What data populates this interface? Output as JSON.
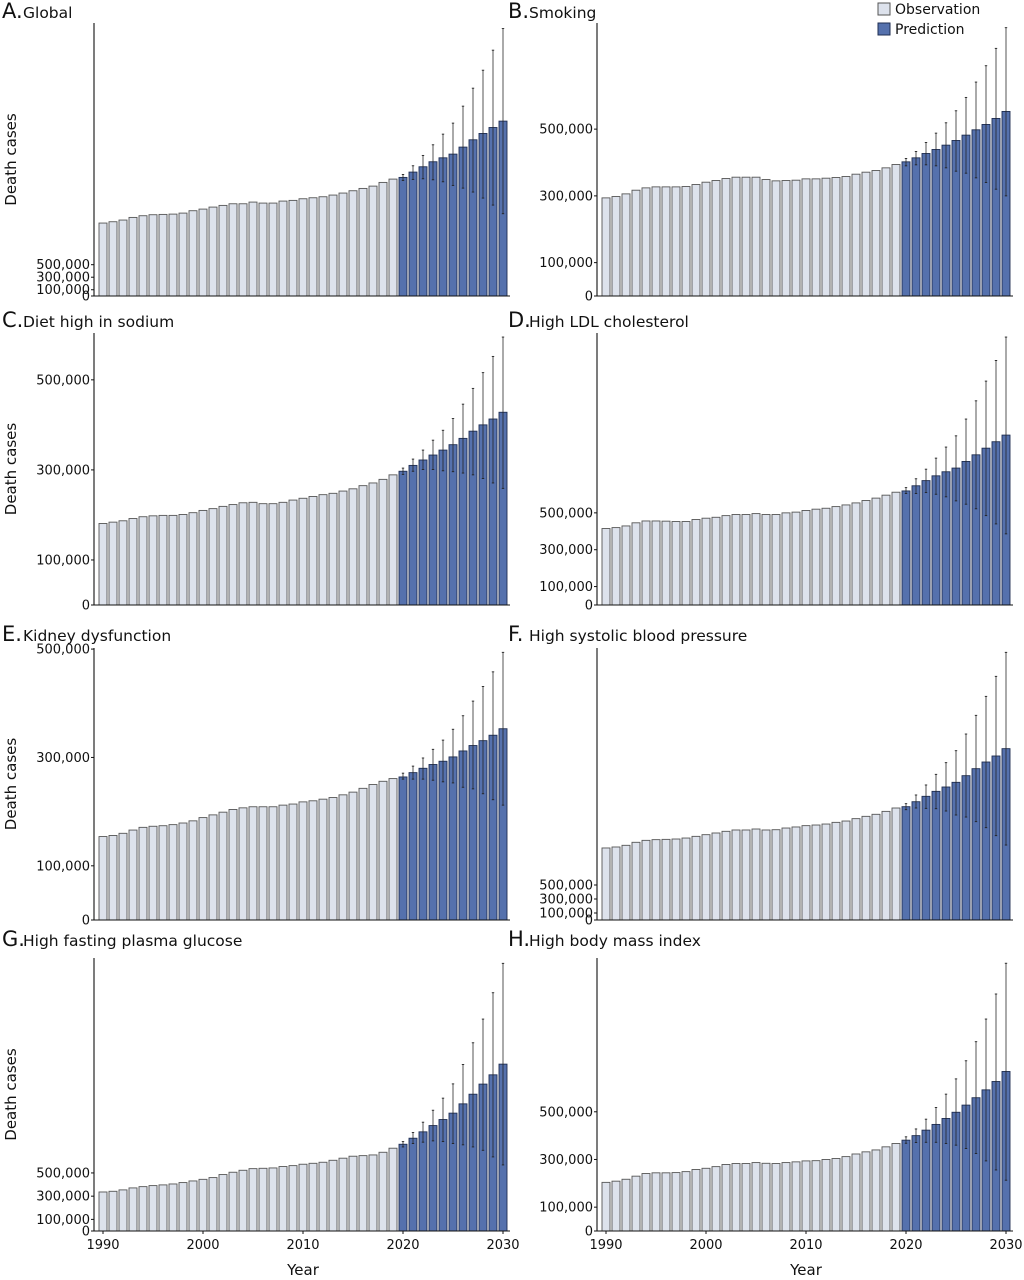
{
  "figure": {
    "legend": [
      {
        "label": "Observation",
        "color": "#dde2ec",
        "stroke": "#555555"
      },
      {
        "label": "Prediction",
        "color": "#5571ad",
        "stroke": "#1f2e52"
      }
    ],
    "colors": {
      "observation": "#dde2ec",
      "prediction": "#5571ad",
      "axis": "#111111",
      "error_bar": "#222222"
    }
  },
  "chart_data": [
    {
      "type": "bar",
      "panel": "A",
      "title": "Global",
      "xlabel": "",
      "ylabel": "Death cases",
      "ylim": [
        0,
        4360000
      ],
      "yticks": [
        0,
        100000,
        300000,
        500000
      ],
      "ytick_labels": [
        "0",
        "100,000",
        "300,000",
        "500,000"
      ],
      "observation_years": [
        1990,
        2019
      ],
      "prediction_years": [
        2020,
        2030
      ],
      "observation": [
        1165000,
        1186000,
        1213000,
        1255000,
        1282000,
        1298000,
        1303000,
        1308000,
        1324000,
        1362000,
        1388000,
        1420000,
        1447000,
        1473000,
        1473000,
        1500000,
        1484000,
        1484000,
        1516000,
        1527000,
        1553000,
        1569000,
        1585000,
        1612000,
        1644000,
        1681000,
        1718000,
        1755000,
        1814000,
        1867000
      ],
      "prediction": [
        1894000,
        1979000,
        2064000,
        2144000,
        2207000,
        2266000,
        2378000,
        2495000,
        2596000,
        2691000,
        2793000
      ],
      "prediction_upper": [
        1941000,
        2080000,
        2245000,
        2415000,
        2585000,
        2761000,
        3032000,
        3319000,
        3606000,
        3926000,
        4271000
      ],
      "prediction_lower": [
        1846000,
        1862000,
        1872000,
        1856000,
        1824000,
        1766000,
        1723000,
        1660000,
        1564000,
        1452000,
        1314000
      ]
    },
    {
      "type": "bar",
      "panel": "B",
      "title": "Smoking",
      "xlabel": "",
      "ylabel": "",
      "ylim": [
        0,
        818000
      ],
      "yticks": [
        0,
        100000,
        300000,
        500000
      ],
      "ytick_labels": [
        "0",
        "100,000",
        "300,000",
        "500,000"
      ],
      "observation_years": [
        1990,
        2019
      ],
      "prediction_years": [
        2020,
        2030
      ],
      "observation": [
        294000,
        298000,
        306000,
        317000,
        324000,
        327000,
        327000,
        327000,
        328000,
        334000,
        341000,
        346000,
        352000,
        356000,
        356000,
        356000,
        349000,
        345000,
        346000,
        347000,
        351000,
        351000,
        353000,
        355000,
        358000,
        365000,
        371000,
        376000,
        384000,
        394000
      ],
      "prediction": [
        402000,
        414000,
        427000,
        439000,
        452000,
        466000,
        482000,
        498000,
        514000,
        532000,
        553000
      ],
      "prediction_upper": [
        412000,
        433000,
        460000,
        488000,
        519000,
        555000,
        595000,
        641000,
        690000,
        742000,
        804000
      ],
      "prediction_lower": [
        390000,
        393000,
        393000,
        390000,
        384000,
        374000,
        368000,
        354000,
        340000,
        320000,
        300000
      ]
    },
    {
      "type": "bar",
      "panel": "C",
      "title": "Diet high in sodium",
      "xlabel": "",
      "ylabel": "Death cases",
      "ylim": [
        0,
        604000
      ],
      "yticks": [
        0,
        100000,
        300000,
        500000
      ],
      "ytick_labels": [
        "0",
        "100,000",
        "300,000",
        "500,000"
      ],
      "observation_years": [
        1990,
        2019
      ],
      "prediction_years": [
        2020,
        2030
      ],
      "observation": [
        181000,
        184000,
        187000,
        192000,
        196000,
        198000,
        199000,
        199000,
        201000,
        205000,
        210000,
        214000,
        219000,
        223000,
        227000,
        228000,
        225000,
        225000,
        228000,
        233000,
        237000,
        241000,
        245000,
        248000,
        253000,
        258000,
        265000,
        271000,
        279000,
        289000
      ],
      "prediction": [
        297000,
        310000,
        322000,
        333000,
        344000,
        356000,
        370000,
        386000,
        400000,
        413000,
        428000
      ],
      "prediction_upper": [
        304000,
        324000,
        344000,
        366000,
        388000,
        414000,
        446000,
        481000,
        516000,
        552000,
        595000
      ],
      "prediction_lower": [
        290000,
        297000,
        301000,
        301000,
        298000,
        296000,
        293000,
        289000,
        281000,
        271000,
        259000
      ]
    },
    {
      "type": "bar",
      "panel": "D",
      "title": "High LDL cholesterol",
      "xlabel": "",
      "ylabel": "",
      "ylim": [
        0,
        1476000
      ],
      "yticks": [
        0,
        100000,
        300000,
        500000
      ],
      "ytick_labels": [
        "0",
        "100,000",
        "300,000",
        "500,000"
      ],
      "observation_years": [
        1990,
        2019
      ],
      "prediction_years": [
        2020,
        2030
      ],
      "observation": [
        415000,
        420000,
        429000,
        446000,
        456000,
        456000,
        455000,
        453000,
        453000,
        464000,
        471000,
        476000,
        485000,
        491000,
        491000,
        496000,
        491000,
        491000,
        500000,
        504000,
        513000,
        520000,
        525000,
        534000,
        543000,
        554000,
        567000,
        580000,
        596000,
        612000
      ],
      "prediction": [
        619000,
        647000,
        675000,
        701000,
        723000,
        743000,
        779000,
        815000,
        851000,
        886000,
        922000
      ],
      "prediction_upper": [
        637000,
        685000,
        737000,
        797000,
        857000,
        918000,
        1009000,
        1108000,
        1215000,
        1327000,
        1454000
      ],
      "prediction_lower": [
        605000,
        605000,
        610000,
        601000,
        587000,
        565000,
        547000,
        522000,
        485000,
        440000,
        386000
      ]
    },
    {
      "type": "bar",
      "panel": "E",
      "title": "Kidney dysfunction",
      "xlabel": "",
      "ylabel": "Death cases",
      "ylim": [
        0,
        502000
      ],
      "yticks": [
        0,
        100000,
        300000,
        500000
      ],
      "ytick_labels": [
        "0",
        "100,000",
        "300,000",
        "500,000"
      ],
      "observation_years": [
        1990,
        2019
      ],
      "prediction_years": [
        2020,
        2030
      ],
      "observation": [
        154000,
        156000,
        160000,
        166000,
        171000,
        173000,
        174000,
        176000,
        179000,
        183000,
        189000,
        194000,
        199000,
        204000,
        207000,
        209000,
        209000,
        209000,
        212000,
        214000,
        218000,
        220000,
        223000,
        226000,
        231000,
        236000,
        243000,
        250000,
        256000,
        261000
      ],
      "prediction": [
        264000,
        272000,
        280000,
        287000,
        293000,
        301000,
        312000,
        322000,
        331000,
        341000,
        353000
      ],
      "prediction_upper": [
        271000,
        284000,
        299000,
        315000,
        332000,
        352000,
        377000,
        404000,
        431000,
        458000,
        494000
      ],
      "prediction_lower": [
        260000,
        260000,
        260000,
        258000,
        255000,
        253000,
        245000,
        242000,
        233000,
        222000,
        212000
      ]
    },
    {
      "type": "bar",
      "panel": "F",
      "title": "High systolic blood pressure",
      "xlabel": "",
      "ylabel": "",
      "ylim": [
        0,
        3886000
      ],
      "yticks": [
        0,
        100000,
        300000,
        500000
      ],
      "ytick_labels": [
        "0",
        "100,000",
        "300,000",
        "500,000"
      ],
      "observation_years": [
        1990,
        2019
      ],
      "prediction_years": [
        2020,
        2030
      ],
      "observation": [
        1029000,
        1043000,
        1067000,
        1110000,
        1138000,
        1148000,
        1152000,
        1157000,
        1171000,
        1195000,
        1219000,
        1243000,
        1267000,
        1286000,
        1286000,
        1300000,
        1286000,
        1290000,
        1314000,
        1329000,
        1348000,
        1357000,
        1371000,
        1395000,
        1414000,
        1448000,
        1481000,
        1510000,
        1552000,
        1600000
      ],
      "prediction": [
        1619000,
        1690000,
        1767000,
        1838000,
        1900000,
        1967000,
        2062000,
        2162000,
        2257000,
        2343000,
        2448000
      ],
      "prediction_upper": [
        1662000,
        1786000,
        1929000,
        2081000,
        2248000,
        2419000,
        2657000,
        2924000,
        3195000,
        3481000,
        3824000
      ],
      "prediction_lower": [
        1576000,
        1600000,
        1595000,
        1590000,
        1557000,
        1500000,
        1471000,
        1405000,
        1319000,
        1205000,
        1071000
      ]
    },
    {
      "type": "bar",
      "panel": "G",
      "title": "High fasting plasma glucose",
      "xlabel": "Year",
      "ylabel": "Death cases",
      "ylim": [
        0,
        2351000
      ],
      "yticks": [
        0,
        100000,
        300000,
        500000
      ],
      "ytick_labels": [
        "0",
        "100,000",
        "300,000",
        "500,000"
      ],
      "xticks": [
        1990,
        2000,
        2010,
        2020,
        2030
      ],
      "observation_years": [
        1990,
        2019
      ],
      "prediction_years": [
        2020,
        2030
      ],
      "observation": [
        336000,
        342000,
        354000,
        371000,
        382000,
        391000,
        397000,
        405000,
        417000,
        431000,
        445000,
        460000,
        486000,
        506000,
        523000,
        537000,
        540000,
        543000,
        555000,
        563000,
        575000,
        583000,
        592000,
        609000,
        627000,
        644000,
        649000,
        655000,
        678000,
        713000
      ],
      "prediction": [
        747000,
        799000,
        854000,
        908000,
        960000,
        1015000,
        1095000,
        1178000,
        1265000,
        1345000,
        1437000
      ],
      "prediction_upper": [
        770000,
        848000,
        937000,
        1040000,
        1144000,
        1267000,
        1434000,
        1621000,
        1825000,
        2052000,
        2305000
      ],
      "prediction_lower": [
        724000,
        753000,
        765000,
        776000,
        770000,
        753000,
        742000,
        724000,
        695000,
        638000,
        569000
      ]
    },
    {
      "type": "bar",
      "panel": "H",
      "title": "High body mass index",
      "xlabel": "Year",
      "ylabel": "",
      "ylim": [
        0,
        1145000
      ],
      "yticks": [
        0,
        100000,
        300000,
        500000
      ],
      "ytick_labels": [
        "0",
        "100,000",
        "300,000",
        "500,000"
      ],
      "xticks": [
        1990,
        2000,
        2010,
        2020,
        2030
      ],
      "observation_years": [
        1990,
        2019
      ],
      "prediction_years": [
        2020,
        2030
      ],
      "observation": [
        204000,
        209000,
        217000,
        230000,
        241000,
        244000,
        244000,
        245000,
        249000,
        258000,
        263000,
        270000,
        279000,
        283000,
        283000,
        287000,
        284000,
        283000,
        287000,
        290000,
        294000,
        295000,
        300000,
        304000,
        312000,
        323000,
        332000,
        340000,
        353000,
        367000
      ],
      "prediction": [
        381000,
        400000,
        423000,
        447000,
        472000,
        498000,
        528000,
        559000,
        592000,
        627000,
        669000
      ],
      "prediction_upper": [
        395000,
        428000,
        469000,
        518000,
        574000,
        638000,
        714000,
        794000,
        889000,
        994000,
        1123000
      ],
      "prediction_lower": [
        368000,
        371000,
        372000,
        372000,
        367000,
        360000,
        346000,
        325000,
        294000,
        256000,
        213000
      ]
    }
  ]
}
